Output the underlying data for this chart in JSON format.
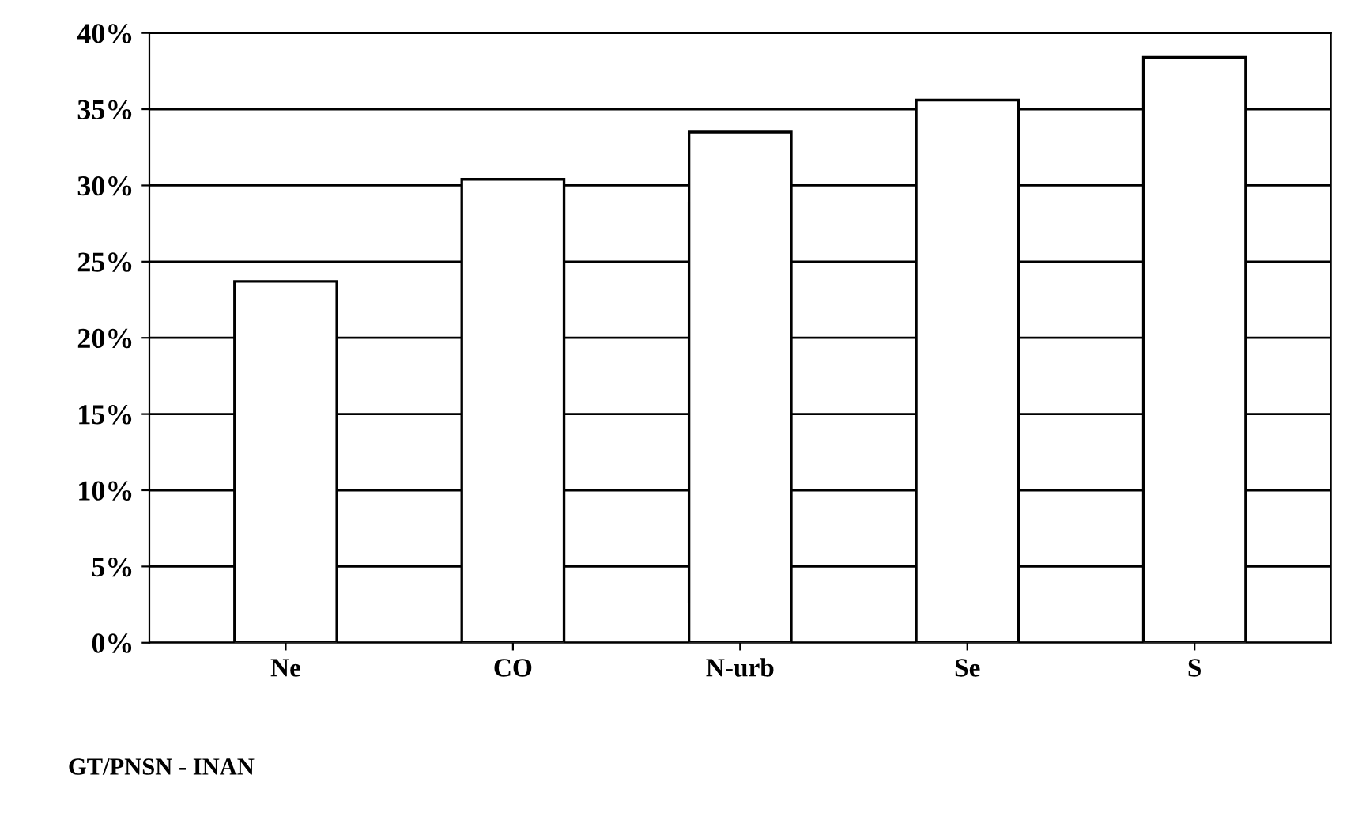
{
  "chart_data": {
    "type": "bar",
    "categories": [
      "Ne",
      "CO",
      "N-urb",
      "Se",
      "S"
    ],
    "values": [
      23.7,
      30.4,
      33.5,
      35.6,
      38.4
    ],
    "color": "#ffffff",
    "ylim": [
      0,
      40
    ],
    "yticks": [
      {
        "value": 0,
        "label": "0%"
      },
      {
        "value": 5,
        "label": "5%"
      },
      {
        "value": 10,
        "label": "10%"
      },
      {
        "value": 15,
        "label": "15%"
      },
      {
        "value": 20,
        "label": "20%"
      },
      {
        "value": 25,
        "label": "25%"
      },
      {
        "value": 30,
        "label": "30%"
      },
      {
        "value": 35,
        "label": "35%"
      },
      {
        "value": 40,
        "label": "40%"
      }
    ],
    "grid": "y",
    "annotations": [
      "GT/PNSN - INAN"
    ]
  }
}
